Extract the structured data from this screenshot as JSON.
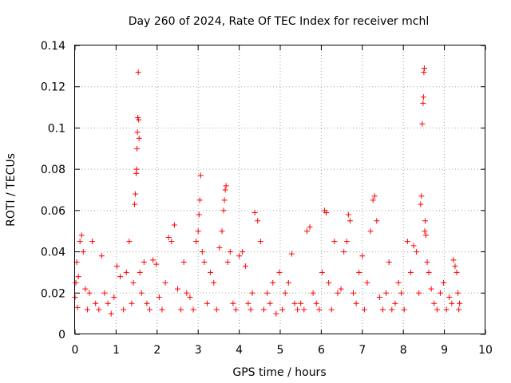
{
  "chart_data": {
    "type": "scatter",
    "title": "Day 260 of 2024, Rate Of TEC Index for receiver mchl",
    "xlabel": "GPS time / hours",
    "ylabel": "ROTI / TECUs",
    "xlim": [
      0,
      10
    ],
    "ylim": [
      0,
      0.14
    ],
    "x_ticks": [
      "0",
      "1",
      "2",
      "3",
      "4",
      "5",
      "6",
      "7",
      "8",
      "9",
      "10"
    ],
    "y_ticks": [
      "0",
      "0.02",
      "0.04",
      "0.06",
      "0.08",
      "0.1",
      "0.12",
      "0.14"
    ],
    "grid": true,
    "marker": "+",
    "series": [
      {
        "name": "ROTI",
        "color": "#ff0000",
        "x": [
          0.0,
          0.02,
          0.04,
          0.06,
          0.08,
          0.12,
          0.16,
          0.2,
          0.25,
          0.3,
          0.35,
          0.42,
          0.5,
          0.58,
          0.65,
          0.72,
          0.8,
          0.88,
          0.95,
          1.02,
          1.1,
          1.18,
          1.25,
          1.32,
          1.38,
          1.42,
          1.45,
          1.47,
          1.49,
          1.5,
          1.51,
          1.52,
          1.53,
          1.54,
          1.55,
          1.56,
          1.58,
          1.62,
          1.68,
          1.75,
          1.82,
          1.9,
          1.98,
          2.05,
          2.12,
          2.2,
          2.28,
          2.35,
          2.42,
          2.5,
          2.58,
          2.65,
          2.72,
          2.8,
          2.88,
          2.95,
          3.0,
          3.02,
          3.04,
          3.06,
          3.1,
          3.15,
          3.22,
          3.3,
          3.38,
          3.45,
          3.52,
          3.58,
          3.62,
          3.64,
          3.66,
          3.68,
          3.72,
          3.78,
          3.85,
          3.92,
          4.0,
          4.08,
          4.15,
          4.22,
          4.28,
          4.32,
          4.38,
          4.45,
          4.52,
          4.6,
          4.68,
          4.75,
          4.82,
          4.9,
          4.98,
          5.05,
          5.12,
          5.2,
          5.28,
          5.35,
          5.42,
          5.5,
          5.58,
          5.65,
          5.72,
          5.8,
          5.88,
          5.95,
          6.02,
          6.08,
          6.12,
          6.18,
          6.25,
          6.32,
          6.4,
          6.48,
          6.55,
          6.62,
          6.66,
          6.7,
          6.78,
          6.85,
          6.92,
          7.0,
          7.05,
          7.12,
          7.2,
          7.26,
          7.3,
          7.35,
          7.42,
          7.5,
          7.58,
          7.65,
          7.72,
          7.8,
          7.88,
          7.95,
          8.02,
          8.1,
          8.18,
          8.25,
          8.32,
          8.38,
          8.42,
          8.44,
          8.46,
          8.48,
          8.49,
          8.5,
          8.51,
          8.52,
          8.53,
          8.55,
          8.58,
          8.62,
          8.68,
          8.75,
          8.82,
          8.9,
          8.98,
          9.05,
          9.12,
          9.18,
          9.22,
          9.26,
          9.3,
          9.33,
          9.35,
          9.37
        ],
        "y": [
          0.018,
          0.025,
          0.035,
          0.013,
          0.028,
          0.045,
          0.048,
          0.04,
          0.022,
          0.012,
          0.02,
          0.045,
          0.015,
          0.012,
          0.038,
          0.02,
          0.015,
          0.01,
          0.018,
          0.033,
          0.028,
          0.012,
          0.03,
          0.045,
          0.015,
          0.025,
          0.063,
          0.068,
          0.078,
          0.08,
          0.09,
          0.098,
          0.105,
          0.127,
          0.104,
          0.095,
          0.03,
          0.02,
          0.035,
          0.015,
          0.012,
          0.036,
          0.034,
          0.018,
          0.012,
          0.025,
          0.047,
          0.045,
          0.053,
          0.022,
          0.012,
          0.035,
          0.02,
          0.018,
          0.012,
          0.045,
          0.05,
          0.058,
          0.065,
          0.077,
          0.04,
          0.035,
          0.015,
          0.03,
          0.025,
          0.012,
          0.042,
          0.05,
          0.06,
          0.065,
          0.07,
          0.072,
          0.035,
          0.04,
          0.015,
          0.012,
          0.038,
          0.04,
          0.033,
          0.015,
          0.012,
          0.02,
          0.059,
          0.055,
          0.045,
          0.012,
          0.02,
          0.015,
          0.025,
          0.01,
          0.03,
          0.012,
          0.02,
          0.025,
          0.039,
          0.015,
          0.012,
          0.015,
          0.012,
          0.05,
          0.052,
          0.02,
          0.015,
          0.012,
          0.03,
          0.06,
          0.059,
          0.025,
          0.012,
          0.045,
          0.02,
          0.022,
          0.04,
          0.045,
          0.058,
          0.055,
          0.02,
          0.015,
          0.03,
          0.038,
          0.012,
          0.025,
          0.05,
          0.065,
          0.067,
          0.055,
          0.018,
          0.012,
          0.02,
          0.035,
          0.012,
          0.015,
          0.025,
          0.02,
          0.012,
          0.045,
          0.03,
          0.043,
          0.04,
          0.02,
          0.063,
          0.067,
          0.102,
          0.112,
          0.115,
          0.127,
          0.129,
          0.05,
          0.055,
          0.048,
          0.035,
          0.03,
          0.022,
          0.015,
          0.012,
          0.02,
          0.025,
          0.012,
          0.018,
          0.015,
          0.036,
          0.033,
          0.03,
          0.02,
          0.012,
          0.015
        ]
      }
    ]
  }
}
